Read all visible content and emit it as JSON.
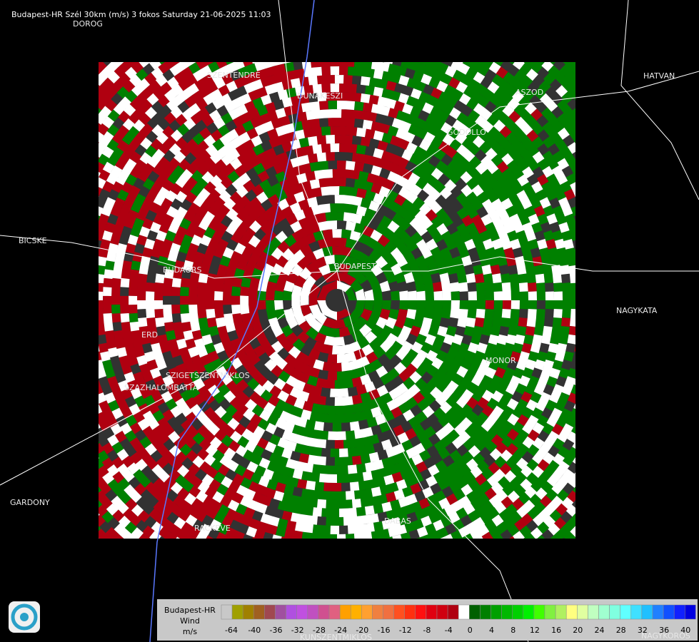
{
  "header": {
    "title": "Budapest-HR Szél 30km (m/s) 3 fokos Saturday 21-06-2025 11:03"
  },
  "towns": [
    "DOROG",
    "SZENTENDRE",
    "DUNAKESZI",
    "HATVAN",
    "ASZOD",
    "GODOLLO",
    "BICSKE",
    "BUDAORS",
    "BUDAPEST",
    "NAGYKATA",
    "ERD",
    "MONOR",
    "SZIGETSZENTMIKLOS",
    "SZAZHALOMBATTA",
    "GARDONY",
    "RACKEVE",
    "DABAS",
    "KUNSZENTMIKLOS",
    "NAGYKOROS"
  ],
  "legend": {
    "lines": [
      "Budapest-HR",
      "Wind",
      "m/s"
    ],
    "ticks": [
      -64,
      -40,
      -36,
      -32,
      -28,
      -24,
      -20,
      -16,
      -12,
      -8,
      -4,
      0,
      4,
      8,
      12,
      16,
      20,
      24,
      28,
      32,
      36,
      40
    ],
    "colors": [
      "#c8c8c8",
      "#a0a000",
      "#a08000",
      "#a06020",
      "#a04850",
      "#a050a0",
      "#b050e0",
      "#c050e0",
      "#c050c0",
      "#d05090",
      "#e06080",
      "#ffa000",
      "#ffb000",
      "#ffa030",
      "#f08040",
      "#f07040",
      "#ff5020",
      "#ff3010",
      "#ff1010",
      "#e00010",
      "#d00010",
      "#b00010",
      "#ffffff",
      "#006000",
      "#008000",
      "#00a000",
      "#00b800",
      "#00d000",
      "#00f000",
      "#40ff00",
      "#80f040",
      "#b0f060",
      "#ffff80",
      "#e0ffa0",
      "#c0ffc0",
      "#a0ffd0",
      "#80ffe0",
      "#60ffff",
      "#40e0ff",
      "#20c0ff",
      "#2080ff",
      "#1050ff",
      "#1020ff",
      "#0000e0"
    ]
  }
}
